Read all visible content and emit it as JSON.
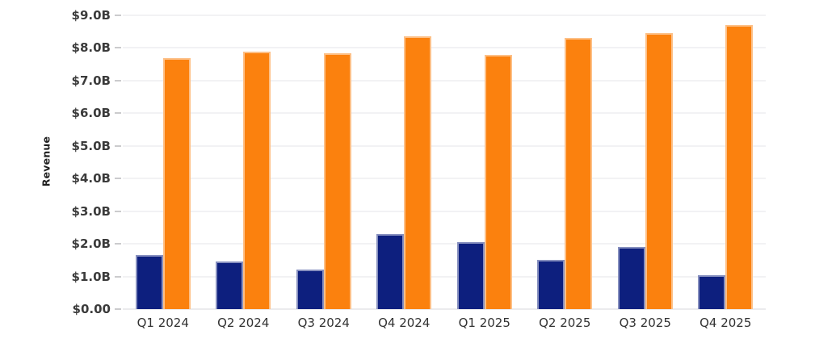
{
  "page": {
    "background_color": "#ffffff"
  },
  "chart_data": {
    "type": "bar",
    "title": "",
    "xlabel": "",
    "ylabel": "Revenue",
    "legend": "none",
    "grid": "horizontal",
    "ylim": [
      0,
      9
    ],
    "categories": [
      "Q1 2024",
      "Q2 2024",
      "Q3 2024",
      "Q4 2024",
      "Q1 2025",
      "Q2 2025",
      "Q3 2025",
      "Q4 2025"
    ],
    "series": [
      {
        "name": "series-navy",
        "color": "#0d1f7e",
        "values": [
          1.65,
          1.45,
          1.2,
          2.3,
          2.05,
          1.5,
          1.9,
          1.05
        ]
      },
      {
        "name": "series-orange",
        "color": "#fb810e",
        "values": [
          7.7,
          7.9,
          7.85,
          8.35,
          7.8,
          8.3,
          8.45,
          8.7
        ]
      }
    ],
    "y_ticks": [
      {
        "label": "$9.0B",
        "value": 9
      },
      {
        "label": "$8.0B",
        "value": 8
      },
      {
        "label": "$7.0B",
        "value": 7
      },
      {
        "label": "$6.0B",
        "value": 6
      },
      {
        "label": "$5.0B",
        "value": 5
      },
      {
        "label": "$4.0B",
        "value": 4
      },
      {
        "label": "$3.0B",
        "value": 3
      },
      {
        "label": "$2.0B",
        "value": 2
      },
      {
        "label": "$1.0B",
        "value": 1
      },
      {
        "label": "$0.00",
        "value": 0
      }
    ]
  },
  "style": {
    "grid_color": "#f2f2f4",
    "axis_tick_color": "#cbcbcd",
    "tick_label_color": "#3b3b3b",
    "x_label_color": "#333333"
  }
}
